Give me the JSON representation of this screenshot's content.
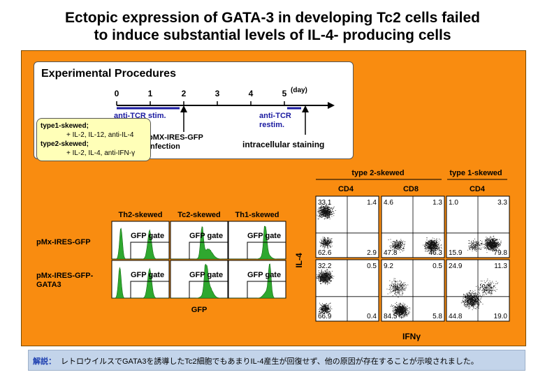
{
  "title": {
    "line1": "Ectopic expression of GATA-3 in developing Tc2 cells failed",
    "line2": "to induce substantial levels of  IL-4- producing cells"
  },
  "procedures": {
    "heading": "Experimental Procedures",
    "days": [
      "0",
      "1",
      "2",
      "3",
      "4",
      "5"
    ],
    "day_unit": "(day)",
    "anti_tcr_stim": "anti-TCR stim.",
    "anti_tcr_restim_1": "anti-TCR",
    "anti_tcr_restim_2": "restim.",
    "infection_1": "pMX-IRES-GFP",
    "infection_2": "infection",
    "staining": "intracellular staining",
    "type1_label": "type1-skewed;",
    "type1_conditions": "+ IL-2, IL-12, anti-IL-4",
    "type2_label": "type2-skewed;",
    "type2_conditions": "+ IL-2, IL-4, anti-IFN-γ"
  },
  "histograms": {
    "columns": [
      "Th2-skewed",
      "Tc2-skewed",
      "Th1-skewed"
    ],
    "rows": [
      "pMx-IRES-GFP",
      "pMx-IRES-GFP-",
      "GATA3"
    ],
    "gate_label": "GFP gate",
    "xlabel": "GFP"
  },
  "flow": {
    "group_type2": "type 2-skewed",
    "group_type1": "type 1-skewed",
    "col_cd4": "CD4",
    "col_cd8": "CD8",
    "col_cd4_b": "CD4",
    "ylabel": "IL-4",
    "xlabel": "IFNγ",
    "row1": {
      "p1": {
        "ul": "33.1",
        "ur": "1.4",
        "ll": "62.6",
        "lr": "2.9"
      },
      "p2": {
        "ul": "4.6",
        "ur": "1.3",
        "ll": "47.8",
        "lr": "46.3"
      },
      "p3": {
        "ul": "1.0",
        "ur": "3.3",
        "ll": "15.9",
        "lr": "79.8"
      }
    },
    "row2": {
      "p1": {
        "ul": "32.2",
        "ur": "0.5",
        "ll": "66.9",
        "lr": "0.4"
      },
      "p2": {
        "ul": "9.2",
        "ur": "0.5",
        "ll": "84.5",
        "lr": "5.8"
      },
      "p3": {
        "ul": "24.9",
        "ur": "11.3",
        "ll": "44.8",
        "lr": "19.0"
      }
    }
  },
  "caption": {
    "label": "解説：",
    "text": "レトロウイルスでGATA3を誘導したTc2細胞でもあまりIL-4産生が回復せず、他の原因が存在することが示唆されました。"
  },
  "colors": {
    "panel": "#f98c10",
    "stim_blue": "#1a1aa0",
    "histogram_green": "#2fa82f",
    "caption_bg": "#c3d4ea",
    "caption_label": "#1e3fb0"
  }
}
